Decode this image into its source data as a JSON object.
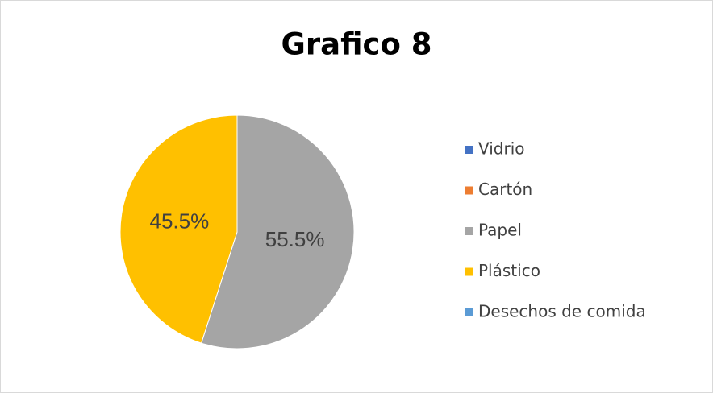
{
  "chart_data": {
    "type": "pie",
    "title": "Grafico 8",
    "categories": [
      "Vidrio",
      "Cartón",
      "Papel",
      "Plástico",
      "Desechos de comida"
    ],
    "values": [
      0,
      0,
      55.5,
      45.5,
      0
    ],
    "value_labels": [
      null,
      null,
      "55.5%",
      "45.5%",
      null
    ],
    "colors": [
      "#4472c4",
      "#ed7d31",
      "#a5a5a5",
      "#ffc000",
      "#5b9bd5"
    ],
    "legend": "right"
  }
}
